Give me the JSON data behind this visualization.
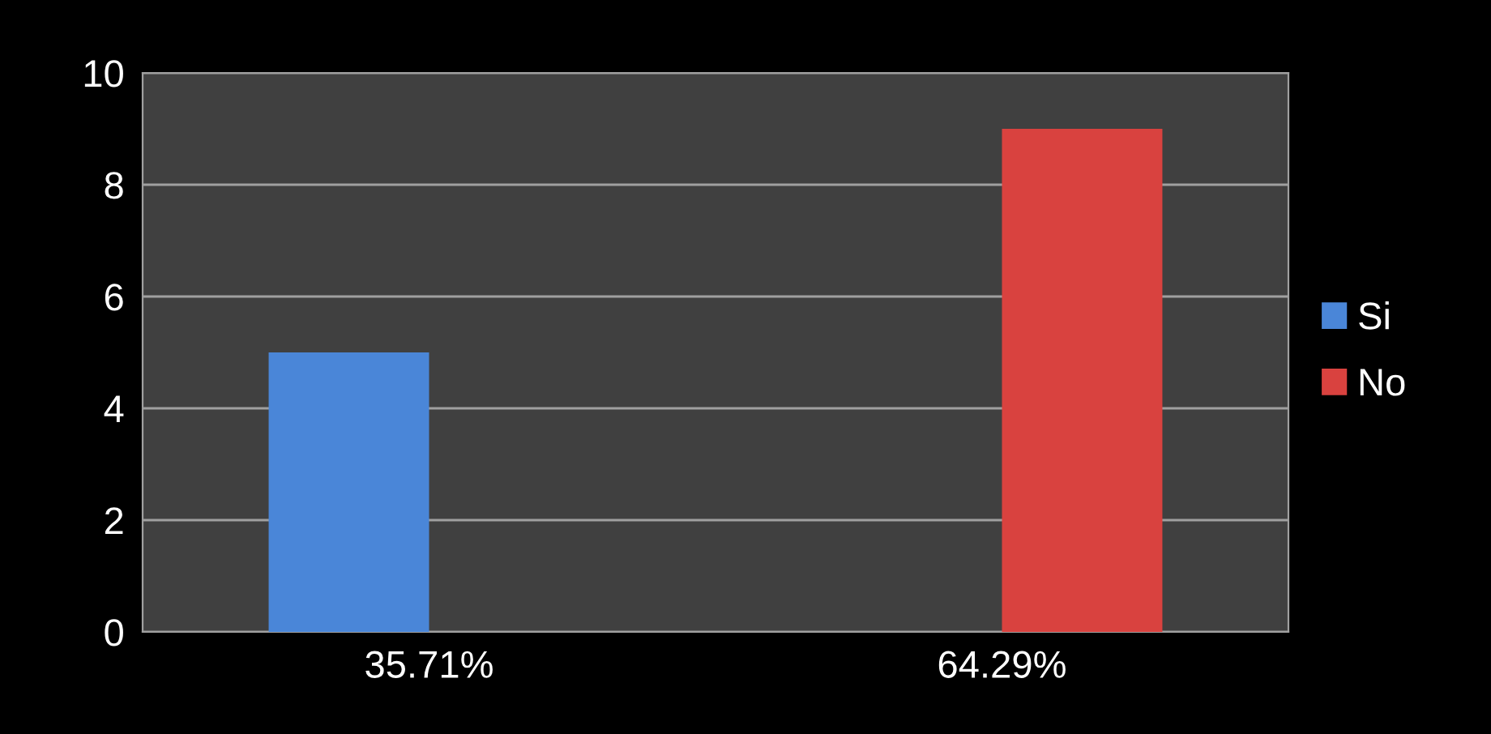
{
  "chart_data": {
    "type": "bar",
    "categories": [
      "35.71%",
      "64.29%"
    ],
    "series": [
      {
        "name": "Si",
        "color": "#4a86d8",
        "values": [
          5,
          null
        ]
      },
      {
        "name": "No",
        "color": "#d9423f",
        "values": [
          null,
          9
        ]
      }
    ],
    "ylim": [
      0,
      10
    ],
    "yticks": [
      0,
      2,
      4,
      6,
      8,
      10
    ],
    "grid": "y",
    "legend": "right"
  }
}
